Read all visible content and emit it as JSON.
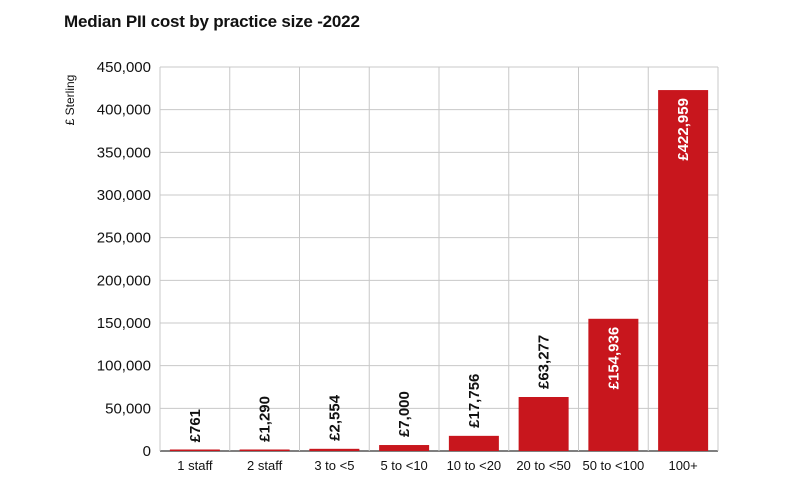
{
  "chart_data": {
    "type": "bar",
    "title": "Median PII cost by practice size -2022",
    "ylabel": "£ Sterling",
    "xlabel": "",
    "categories": [
      "1 staff",
      "2 staff",
      "3 to <5",
      "5 to <10",
      "10 to <20",
      "20 to <50",
      "50 to <100",
      "100+"
    ],
    "values": [
      761,
      1290,
      2554,
      7000,
      17756,
      63277,
      154936,
      422959
    ],
    "data_labels": [
      "£761",
      "£1,290",
      "£2,554",
      "£7,000",
      "£17,756",
      "£63,277",
      "£154,936",
      "£422,959"
    ],
    "ylim": [
      0,
      450000
    ],
    "yticks": [
      0,
      50000,
      100000,
      150000,
      200000,
      250000,
      300000,
      350000,
      400000,
      450000
    ],
    "ytick_labels": [
      "0",
      "50,000",
      "100,000",
      "150,000",
      "200,000",
      "250,000",
      "300,000",
      "350,000",
      "400,000",
      "450,000"
    ],
    "grid": true,
    "bar_color": "#c8161d"
  }
}
